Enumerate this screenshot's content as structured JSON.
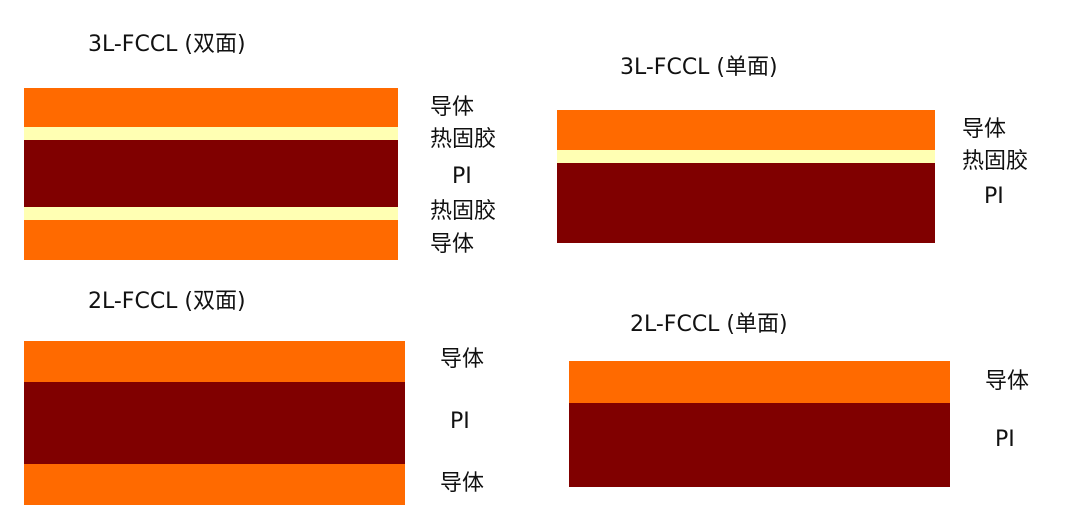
{
  "panels": [
    {
      "title": "3L-FCCL (双面)",
      "layers": [
        {
          "label": "导体"
        },
        {
          "label": "热固胶"
        },
        {
          "label": "PI"
        },
        {
          "label": "热固胶"
        },
        {
          "label": "导体"
        }
      ]
    },
    {
      "title": "3L-FCCL (单面)",
      "layers": [
        {
          "label": "导体"
        },
        {
          "label": "热固胶"
        },
        {
          "label": "PI"
        }
      ]
    },
    {
      "title": "2L-FCCL (双面)",
      "layers": [
        {
          "label": "导体"
        },
        {
          "label": "PI"
        },
        {
          "label": "导体"
        }
      ]
    },
    {
      "title": "2L-FCCL (单面)",
      "layers": [
        {
          "label": "导体"
        },
        {
          "label": "PI"
        }
      ]
    }
  ]
}
